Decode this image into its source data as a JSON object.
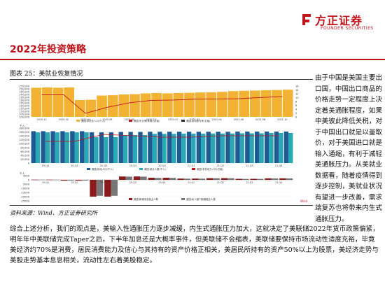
{
  "header": {
    "logo_cn": "方正证券",
    "logo_en": "FOUNDER SECURITIES",
    "page_title": "2022年投资策略",
    "accent_color": "#c0141b"
  },
  "figure": {
    "caption": "图表 25：美就业恢复情况",
    "source": "资料来源：Wind、方正证券研究所"
  },
  "side_note": "由于中国是美国主要出口国，中国出口商品的价格走势一定程度上决定着美通胀程度，如果中美彼此降低关税，对于中国出口就是以量取价，对于美国进口就是输入通缩，有利于减轻美通胀压力。从美就业数据看，随着疫情得到逐步控制，美就业状况有望进一步改善，需求端复苏也将带来内生式通胀压力。",
  "body_paragraph": "综合上述分析，我们的观点是，美输入性通胀压力逐步减缓，内生式通胀压力加大，这就决定了美联储2022年货币政策偏紧，明年年中美联储完成Taper之后，下半年加息还是大概率事件，但美联储不会缩表，美联储要保持市场流动性适度充裕，毕竟美经济约70%是消费，居民消费能力及信心与其持有的资产价格正相关，美居民所持有的资产50%以上为股票，美经济走势与美股走势基本息息相关，流动性左右着美股稳定。",
  "chart_data": [
    {
      "type": "bar",
      "title": "",
      "legend": [
        "美国:非农业人口(千人)",
        "美国:失业率(季调)(右轴)",
        "美国:劳动参与率(右轴)"
      ],
      "categories": [
        "2019-12",
        "2020-02",
        "2020-04",
        "2020-06",
        "2020-08",
        "2020-10",
        "2020-12",
        "2021-02",
        "2021-04",
        "2021-06",
        "2021-08",
        "2021-10"
      ],
      "values": [
        152,
        152,
        130,
        138,
        140,
        142,
        142,
        143,
        144,
        146,
        147,
        148
      ],
      "line_values": [
        3.6,
        3.5,
        14.7,
        11.1,
        8.4,
        6.9,
        6.7,
        6.2,
        6.1,
        5.9,
        5.2,
        4.6
      ],
      "ylim": [
        100,
        155
      ],
      "tick_labels": [
        "155,000",
        "150,000",
        "145,000",
        "140,000",
        "135,000",
        "130,000",
        "125,000",
        "120,000",
        "115,000",
        "110,000",
        "105,000",
        "100,000"
      ]
    },
    {
      "type": "bar",
      "title": "",
      "unit": "千人",
      "legend": [
        "美国:劳动人口(千人)",
        "美国:就业人数(千人)",
        "美国:非劳动力人口(右轴)"
      ],
      "categories": [
        "19-Q4",
        "20-Q1",
        "20-Q2",
        "20-Q3",
        "20-Q4",
        "21-Q1",
        "21-Q2",
        "21-Q3",
        "21-Q4"
      ],
      "series": [
        {
          "values": [
            164,
            164,
            158,
            160,
            161,
            161,
            161,
            162,
            162
          ]
        },
        {
          "values": [
            158,
            158,
            133,
            144,
            150,
            151,
            152,
            153,
            155
          ]
        }
      ],
      "ylim": [
        0,
        180
      ],
      "tick_labels": [
        "180,000",
        "160,000",
        "140,000",
        "120,000",
        "100,000",
        "80,000",
        "60,000",
        "40,000",
        "20,000",
        "0"
      ]
    },
    {
      "type": "bar",
      "title": "",
      "unit": "千人",
      "legend": [
        "美国:新增非农就业人数",
        "美国:私人部门新增就业人数"
      ],
      "categories": [
        "19-Q4",
        "20-Q1",
        "20-Q2",
        "20-Q3",
        "20-Q4",
        "21-Q1",
        "21-Q2",
        "21-Q3",
        "21-Q4"
      ],
      "series": [
        {
          "values": [
            200,
            -1000,
            -20000,
            4000,
            2500,
            1500,
            2000,
            1200,
            1800
          ]
        },
        {
          "values": [
            180,
            -900,
            -19000,
            3800,
            2300,
            1400,
            1900,
            1100,
            1700
          ]
        }
      ],
      "ylim": [
        -25000,
        5000
      ],
      "source_label": "Wind"
    }
  ]
}
